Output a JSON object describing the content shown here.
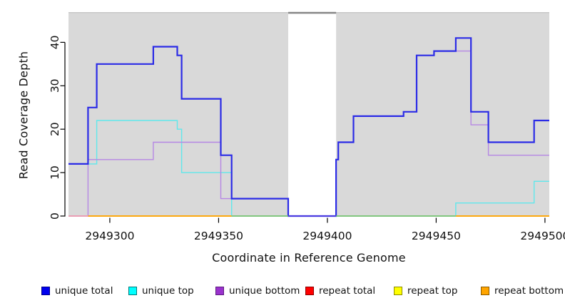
{
  "chart_data": {
    "type": "step-line",
    "title": "",
    "xlabel": "Coordinate in Reference Genome",
    "ylabel": "Read Coverage Depth",
    "x_ticks": [
      2949300,
      2949350,
      2949400,
      2949450,
      2949500
    ],
    "y_ticks": [
      0,
      10,
      20,
      30,
      40
    ],
    "xlim": [
      2949281,
      2949502
    ],
    "ylim": [
      0,
      47
    ],
    "grid": "off",
    "plot_bg_color": "#d9d9d9",
    "plot_bg_top_edge_color": "#c6c6c6",
    "gap_region": {
      "from": 2949382,
      "to": 2949404,
      "fill": "#ffffff",
      "top_edge_color": "#868686"
    },
    "series": [
      {
        "name": "repeat total",
        "color": "#FF0000",
        "width": 1.3,
        "points": [
          [
            2949281,
            0
          ],
          [
            2949502,
            0
          ]
        ]
      },
      {
        "name": "repeat top",
        "color": "#FFFF00",
        "width": 1.3,
        "points": [
          [
            2949281,
            0
          ],
          [
            2949502,
            0
          ]
        ]
      },
      {
        "name": "repeat bottom",
        "color": "#FFA500",
        "width": 1.6,
        "points": [
          [
            2949281,
            0
          ],
          [
            2949502,
            0
          ]
        ]
      },
      {
        "name": "unique top",
        "color": "#5FE8EC",
        "width": 1.4,
        "points": [
          [
            2949281,
            12
          ],
          [
            2949294,
            12
          ],
          [
            2949294,
            22
          ],
          [
            2949331,
            22
          ],
          [
            2949331,
            20
          ],
          [
            2949333,
            20
          ],
          [
            2949333,
            10
          ],
          [
            2949356,
            10
          ],
          [
            2949356,
            0
          ],
          [
            2949459,
            0
          ],
          [
            2949459,
            3
          ],
          [
            2949495,
            3
          ],
          [
            2949495,
            8
          ],
          [
            2949502,
            8
          ]
        ]
      },
      {
        "name": "unique bottom",
        "color": "#B687E4",
        "width": 1.4,
        "points": [
          [
            2949281,
            0
          ],
          [
            2949290,
            0
          ],
          [
            2949290,
            13
          ],
          [
            2949320,
            13
          ],
          [
            2949320,
            17
          ],
          [
            2949351,
            17
          ],
          [
            2949351,
            4
          ],
          [
            2949382,
            4
          ],
          [
            2949382,
            0
          ],
          [
            2949404,
            0
          ],
          [
            2949404,
            13
          ],
          [
            2949405,
            13
          ],
          [
            2949405,
            17
          ],
          [
            2949412,
            17
          ],
          [
            2949412,
            23
          ],
          [
            2949435,
            23
          ],
          [
            2949435,
            24
          ],
          [
            2949441,
            24
          ],
          [
            2949441,
            37
          ],
          [
            2949449,
            37
          ],
          [
            2949449,
            38
          ],
          [
            2949466,
            38
          ],
          [
            2949466,
            21
          ],
          [
            2949474,
            21
          ],
          [
            2949474,
            14
          ],
          [
            2949502,
            14
          ]
        ]
      },
      {
        "name": "unique total",
        "color": "#2B2BE6",
        "width": 2.2,
        "points": [
          [
            2949281,
            12
          ],
          [
            2949290,
            12
          ],
          [
            2949290,
            25
          ],
          [
            2949294,
            25
          ],
          [
            2949294,
            35
          ],
          [
            2949320,
            35
          ],
          [
            2949320,
            39
          ],
          [
            2949331,
            39
          ],
          [
            2949331,
            37
          ],
          [
            2949333,
            37
          ],
          [
            2949333,
            27
          ],
          [
            2949351,
            27
          ],
          [
            2949351,
            14
          ],
          [
            2949356,
            14
          ],
          [
            2949356,
            4
          ],
          [
            2949382,
            4
          ],
          [
            2949382,
            0
          ],
          [
            2949404,
            0
          ],
          [
            2949404,
            13
          ],
          [
            2949405,
            13
          ],
          [
            2949405,
            17
          ],
          [
            2949412,
            17
          ],
          [
            2949412,
            23
          ],
          [
            2949435,
            23
          ],
          [
            2949435,
            24
          ],
          [
            2949441,
            24
          ],
          [
            2949441,
            37
          ],
          [
            2949449,
            37
          ],
          [
            2949449,
            38
          ],
          [
            2949459,
            38
          ],
          [
            2949459,
            41
          ],
          [
            2949466,
            41
          ],
          [
            2949466,
            24
          ],
          [
            2949474,
            24
          ],
          [
            2949474,
            17
          ],
          [
            2949495,
            17
          ],
          [
            2949495,
            22
          ],
          [
            2949502,
            22
          ]
        ]
      }
    ],
    "baseline_overlay_segments": [
      {
        "from": 2949281,
        "to": 2949290,
        "color": "#F2A0C0",
        "width": 1.6
      },
      {
        "from": 2949290,
        "to": 2949356,
        "color": "#FFA500",
        "width": 1.6
      },
      {
        "from": 2949356,
        "to": 2949382,
        "color": "#74C476",
        "width": 1.4
      },
      {
        "from": 2949382,
        "to": 2949404,
        "color": "#4B3BE0",
        "width": 2.0
      },
      {
        "from": 2949404,
        "to": 2949459,
        "color": "#74C476",
        "width": 1.4
      },
      {
        "from": 2949459,
        "to": 2949502,
        "color": "#FFA500",
        "width": 1.6
      }
    ],
    "axis_color": "#000000",
    "tick_label_color": "#111111"
  },
  "legend": {
    "items": [
      {
        "label": "unique total",
        "fill": "#0000EE",
        "border": "#00008B"
      },
      {
        "label": "unique top",
        "fill": "#00FFFF",
        "border": "#007A7A"
      },
      {
        "label": "unique bottom",
        "fill": "#9A32CD",
        "border": "#5E1B80"
      },
      {
        "label": "repeat total",
        "fill": "#FF0000",
        "border": "#8B0000"
      },
      {
        "label": "repeat top",
        "fill": "#FFFF00",
        "border": "#8B8B00"
      },
      {
        "label": "repeat bottom",
        "fill": "#FFA500",
        "border": "#8B5A00"
      }
    ]
  }
}
